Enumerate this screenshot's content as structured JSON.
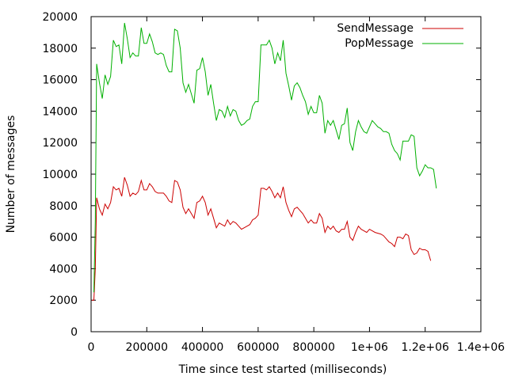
{
  "chart_data": {
    "type": "line",
    "title": "",
    "xlabel": "Time since test started (milliseconds)",
    "ylabel": "Number of messages",
    "xlim": [
      0,
      1400000
    ],
    "ylim": [
      0,
      20000
    ],
    "x_ticks": [
      0,
      200000,
      400000,
      600000,
      800000,
      1000000,
      1200000,
      1400000
    ],
    "x_tick_labels": [
      "0",
      "200000",
      "400000",
      "600000",
      "800000",
      "1e+06",
      "1.2e+06",
      "1.4e+06"
    ],
    "y_ticks": [
      0,
      2000,
      4000,
      6000,
      8000,
      10000,
      12000,
      14000,
      16000,
      18000,
      20000
    ],
    "y_tick_labels": [
      "0",
      "2000",
      "4000",
      "6000",
      "8000",
      "10000",
      "12000",
      "14000",
      "16000",
      "18000",
      "20000"
    ],
    "legend_position": "top-right",
    "grid": false,
    "series": [
      {
        "name": "SendMessage",
        "color": "#cc0000",
        "points": [
          [
            2000,
            2000
          ],
          [
            10000,
            2000
          ],
          [
            15000,
            4000
          ],
          [
            20000,
            8500
          ],
          [
            30000,
            7800
          ],
          [
            40000,
            7400
          ],
          [
            50000,
            8100
          ],
          [
            60000,
            7800
          ],
          [
            70000,
            8200
          ],
          [
            80000,
            9200
          ],
          [
            90000,
            9000
          ],
          [
            100000,
            9100
          ],
          [
            110000,
            8600
          ],
          [
            120000,
            9800
          ],
          [
            130000,
            9300
          ],
          [
            140000,
            8600
          ],
          [
            150000,
            8800
          ],
          [
            160000,
            8700
          ],
          [
            170000,
            8900
          ],
          [
            180000,
            9600
          ],
          [
            190000,
            9000
          ],
          [
            200000,
            9000
          ],
          [
            210000,
            9400
          ],
          [
            220000,
            9200
          ],
          [
            230000,
            8900
          ],
          [
            240000,
            8800
          ],
          [
            250000,
            8800
          ],
          [
            260000,
            8800
          ],
          [
            270000,
            8600
          ],
          [
            280000,
            8300
          ],
          [
            290000,
            8200
          ],
          [
            300000,
            9600
          ],
          [
            310000,
            9500
          ],
          [
            320000,
            9000
          ],
          [
            330000,
            7900
          ],
          [
            340000,
            7500
          ],
          [
            350000,
            7800
          ],
          [
            360000,
            7500
          ],
          [
            370000,
            7200
          ],
          [
            380000,
            8200
          ],
          [
            390000,
            8300
          ],
          [
            400000,
            8600
          ],
          [
            410000,
            8200
          ],
          [
            420000,
            7400
          ],
          [
            430000,
            7800
          ],
          [
            440000,
            7200
          ],
          [
            450000,
            6600
          ],
          [
            460000,
            6900
          ],
          [
            470000,
            6800
          ],
          [
            480000,
            6700
          ],
          [
            490000,
            7100
          ],
          [
            500000,
            6800
          ],
          [
            510000,
            7000
          ],
          [
            520000,
            6900
          ],
          [
            530000,
            6700
          ],
          [
            540000,
            6500
          ],
          [
            550000,
            6600
          ],
          [
            560000,
            6700
          ],
          [
            570000,
            6800
          ],
          [
            580000,
            7100
          ],
          [
            590000,
            7200
          ],
          [
            600000,
            7400
          ],
          [
            610000,
            9100
          ],
          [
            620000,
            9100
          ],
          [
            630000,
            9000
          ],
          [
            640000,
            9200
          ],
          [
            650000,
            8900
          ],
          [
            660000,
            8500
          ],
          [
            670000,
            8800
          ],
          [
            680000,
            8500
          ],
          [
            690000,
            9200
          ],
          [
            700000,
            8200
          ],
          [
            710000,
            7700
          ],
          [
            720000,
            7300
          ],
          [
            730000,
            7800
          ],
          [
            740000,
            7900
          ],
          [
            750000,
            7700
          ],
          [
            760000,
            7500
          ],
          [
            770000,
            7200
          ],
          [
            780000,
            6900
          ],
          [
            790000,
            7100
          ],
          [
            800000,
            6900
          ],
          [
            810000,
            6900
          ],
          [
            820000,
            7500
          ],
          [
            830000,
            7200
          ],
          [
            840000,
            6300
          ],
          [
            850000,
            6700
          ],
          [
            860000,
            6500
          ],
          [
            870000,
            6700
          ],
          [
            880000,
            6400
          ],
          [
            890000,
            6300
          ],
          [
            900000,
            6500
          ],
          [
            910000,
            6500
          ],
          [
            920000,
            7000
          ],
          [
            930000,
            6000
          ],
          [
            940000,
            5800
          ],
          [
            950000,
            6300
          ],
          [
            960000,
            6700
          ],
          [
            970000,
            6500
          ],
          [
            980000,
            6400
          ],
          [
            990000,
            6300
          ],
          [
            1000000,
            6500
          ],
          [
            1010000,
            6400
          ],
          [
            1020000,
            6300
          ],
          [
            1030000,
            6250
          ],
          [
            1040000,
            6200
          ],
          [
            1050000,
            6100
          ],
          [
            1060000,
            5900
          ],
          [
            1070000,
            5700
          ],
          [
            1080000,
            5600
          ],
          [
            1090000,
            5400
          ],
          [
            1100000,
            6000
          ],
          [
            1110000,
            6000
          ],
          [
            1120000,
            5900
          ],
          [
            1130000,
            6200
          ],
          [
            1140000,
            6100
          ],
          [
            1150000,
            5200
          ],
          [
            1160000,
            4900
          ],
          [
            1170000,
            5000
          ],
          [
            1180000,
            5300
          ],
          [
            1190000,
            5200
          ],
          [
            1200000,
            5200
          ],
          [
            1210000,
            5100
          ],
          [
            1220000,
            4500
          ]
        ]
      },
      {
        "name": "PopMessage",
        "color": "#00b000",
        "points": [
          [
            10000,
            2500
          ],
          [
            15000,
            7000
          ],
          [
            20000,
            17000
          ],
          [
            30000,
            15800
          ],
          [
            40000,
            14800
          ],
          [
            50000,
            16300
          ],
          [
            60000,
            15700
          ],
          [
            70000,
            16200
          ],
          [
            80000,
            18500
          ],
          [
            90000,
            18100
          ],
          [
            100000,
            18200
          ],
          [
            110000,
            17000
          ],
          [
            120000,
            19600
          ],
          [
            130000,
            18600
          ],
          [
            140000,
            17400
          ],
          [
            150000,
            17700
          ],
          [
            160000,
            17500
          ],
          [
            170000,
            17500
          ],
          [
            180000,
            19300
          ],
          [
            190000,
            18300
          ],
          [
            200000,
            18300
          ],
          [
            210000,
            18900
          ],
          [
            220000,
            18400
          ],
          [
            230000,
            17700
          ],
          [
            240000,
            17600
          ],
          [
            250000,
            17700
          ],
          [
            260000,
            17600
          ],
          [
            270000,
            16900
          ],
          [
            280000,
            16500
          ],
          [
            290000,
            16500
          ],
          [
            300000,
            19200
          ],
          [
            310000,
            19100
          ],
          [
            320000,
            18000
          ],
          [
            330000,
            15800
          ],
          [
            340000,
            15200
          ],
          [
            350000,
            15700
          ],
          [
            360000,
            15100
          ],
          [
            370000,
            14500
          ],
          [
            380000,
            16600
          ],
          [
            390000,
            16700
          ],
          [
            400000,
            17400
          ],
          [
            410000,
            16500
          ],
          [
            420000,
            15000
          ],
          [
            430000,
            15700
          ],
          [
            440000,
            14500
          ],
          [
            450000,
            13400
          ],
          [
            460000,
            14100
          ],
          [
            470000,
            14000
          ],
          [
            480000,
            13600
          ],
          [
            490000,
            14300
          ],
          [
            500000,
            13700
          ],
          [
            510000,
            14100
          ],
          [
            520000,
            14000
          ],
          [
            530000,
            13400
          ],
          [
            540000,
            13100
          ],
          [
            550000,
            13200
          ],
          [
            560000,
            13400
          ],
          [
            570000,
            13500
          ],
          [
            580000,
            14300
          ],
          [
            590000,
            14600
          ],
          [
            600000,
            14600
          ],
          [
            610000,
            18200
          ],
          [
            620000,
            18200
          ],
          [
            630000,
            18200
          ],
          [
            640000,
            18500
          ],
          [
            650000,
            18000
          ],
          [
            660000,
            17000
          ],
          [
            670000,
            17700
          ],
          [
            680000,
            17200
          ],
          [
            690000,
            18500
          ],
          [
            700000,
            16400
          ],
          [
            710000,
            15600
          ],
          [
            720000,
            14700
          ],
          [
            730000,
            15600
          ],
          [
            740000,
            15800
          ],
          [
            750000,
            15500
          ],
          [
            760000,
            15000
          ],
          [
            770000,
            14600
          ],
          [
            780000,
            13800
          ],
          [
            790000,
            14300
          ],
          [
            800000,
            13900
          ],
          [
            810000,
            13900
          ],
          [
            820000,
            15000
          ],
          [
            830000,
            14500
          ],
          [
            840000,
            12600
          ],
          [
            850000,
            13400
          ],
          [
            860000,
            13100
          ],
          [
            870000,
            13400
          ],
          [
            880000,
            12800
          ],
          [
            890000,
            12200
          ],
          [
            900000,
            13100
          ],
          [
            910000,
            13200
          ],
          [
            920000,
            14200
          ],
          [
            930000,
            12000
          ],
          [
            940000,
            11500
          ],
          [
            950000,
            12700
          ],
          [
            960000,
            13400
          ],
          [
            970000,
            13000
          ],
          [
            980000,
            12700
          ],
          [
            990000,
            12600
          ],
          [
            1000000,
            13000
          ],
          [
            1010000,
            13400
          ],
          [
            1020000,
            13200
          ],
          [
            1030000,
            13000
          ],
          [
            1040000,
            12900
          ],
          [
            1050000,
            12700
          ],
          [
            1060000,
            12700
          ],
          [
            1070000,
            12600
          ],
          [
            1080000,
            11900
          ],
          [
            1090000,
            11500
          ],
          [
            1100000,
            11300
          ],
          [
            1110000,
            10900
          ],
          [
            1120000,
            12100
          ],
          [
            1130000,
            12100
          ],
          [
            1140000,
            12100
          ],
          [
            1150000,
            12500
          ],
          [
            1160000,
            12400
          ],
          [
            1170000,
            10400
          ],
          [
            1180000,
            9900
          ],
          [
            1190000,
            10200
          ],
          [
            1200000,
            10600
          ],
          [
            1210000,
            10400
          ],
          [
            1220000,
            10400
          ],
          [
            1230000,
            10300
          ],
          [
            1240000,
            9100
          ]
        ]
      }
    ]
  }
}
